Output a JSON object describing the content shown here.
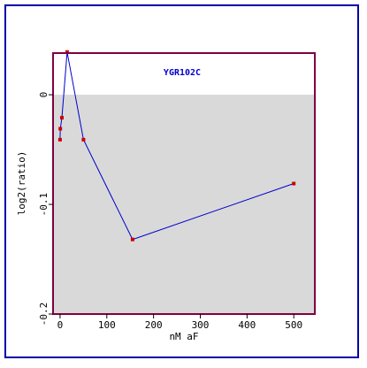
{
  "chart_data": {
    "type": "line",
    "title": "YGR102C",
    "xlabel": "nM aF",
    "ylabel": "log2(ratio)",
    "xlim": [
      -15,
      545
    ],
    "ylim": [
      -0.2,
      0.038
    ],
    "x_ticks": [
      {
        "value": 0,
        "label": "0"
      },
      {
        "value": 100,
        "label": "100"
      },
      {
        "value": 200,
        "label": "200"
      },
      {
        "value": 300,
        "label": "300"
      },
      {
        "value": 400,
        "label": "400"
      },
      {
        "value": 500,
        "label": "500"
      }
    ],
    "y_ticks": [
      {
        "value": 0,
        "label": "0"
      },
      {
        "value": -0.1,
        "label": "-0.1"
      },
      {
        "value": -0.2,
        "label": "-0.2"
      }
    ],
    "grid": false,
    "shaded_region": {
      "y_from": -0.2,
      "y_to": 0,
      "color": "#d9d9d9"
    },
    "series": [
      {
        "x": [
          0,
          0.5,
          4,
          15,
          50,
          155,
          500
        ],
        "y": [
          -0.041,
          -0.031,
          -0.021,
          0.039,
          -0.041,
          -0.132,
          -0.081
        ],
        "line_color": "#0000cc",
        "marker_color": "#cc0000"
      }
    ],
    "colors": {
      "frame_border": "#0000a8",
      "plot_border": "#800040",
      "background": "#ffffff"
    }
  }
}
